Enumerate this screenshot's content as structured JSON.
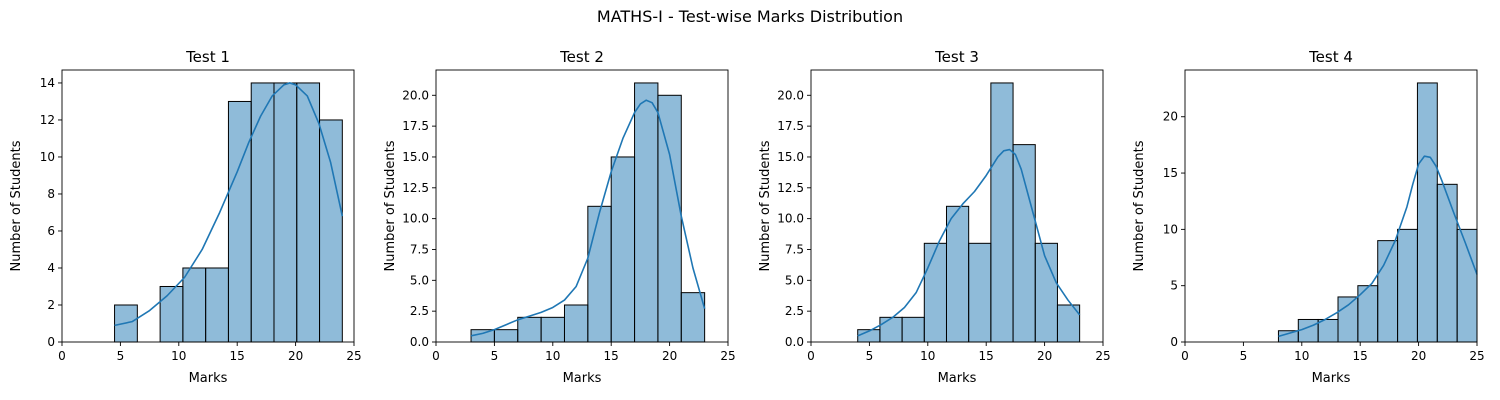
{
  "suptitle": "MATHS-I - Test-wise Marks Distribution",
  "style": {
    "bar_fill": "#1f77b4",
    "bar_fill_opacity": 0.5,
    "bar_edge": "#000000",
    "kde_color": "#1f77b4"
  },
  "chart_data": [
    {
      "type": "bar",
      "title": "Test 1",
      "xlabel": "Marks",
      "ylabel": "Number of Students",
      "xlim": [
        0,
        25
      ],
      "ylim": [
        0,
        14.7
      ],
      "xticks": [
        0,
        5,
        10,
        15,
        20,
        25
      ],
      "yticks": [
        0,
        2,
        4,
        6,
        8,
        10,
        12,
        14
      ],
      "ytick_labels": [
        "0",
        "2",
        "4",
        "6",
        "8",
        "10",
        "12",
        "14"
      ],
      "bins": [
        {
          "x0": 4.5,
          "x1": 6.45,
          "count": 2
        },
        {
          "x0": 6.45,
          "x1": 8.4,
          "count": 0
        },
        {
          "x0": 8.4,
          "x1": 10.35,
          "count": 3
        },
        {
          "x0": 10.35,
          "x1": 12.3,
          "count": 4
        },
        {
          "x0": 12.3,
          "x1": 14.25,
          "count": 4
        },
        {
          "x0": 14.25,
          "x1": 16.2,
          "count": 13
        },
        {
          "x0": 16.2,
          "x1": 18.15,
          "count": 14
        },
        {
          "x0": 18.15,
          "x1": 20.1,
          "count": 14
        },
        {
          "x0": 20.1,
          "x1": 22.05,
          "count": 14
        },
        {
          "x0": 22.05,
          "x1": 24.0,
          "count": 12
        }
      ],
      "kde": {
        "x": [
          4.5,
          6,
          7.5,
          9,
          10.5,
          12,
          13.5,
          15,
          16,
          17,
          18,
          19,
          19.5,
          20,
          21,
          22,
          23,
          24
        ],
        "y": [
          0.9,
          1.1,
          1.7,
          2.5,
          3.5,
          5.0,
          7.0,
          9.2,
          10.8,
          12.2,
          13.3,
          13.9,
          14.0,
          13.9,
          13.3,
          11.8,
          9.7,
          6.8
        ]
      }
    },
    {
      "type": "bar",
      "title": "Test 2",
      "xlabel": "Marks",
      "ylabel": "Number of Students",
      "xlim": [
        0,
        25
      ],
      "ylim": [
        0,
        22.05
      ],
      "xticks": [
        0,
        5,
        10,
        15,
        20,
        25
      ],
      "yticks": [
        0,
        2.5,
        5,
        7.5,
        10,
        12.5,
        15,
        17.5,
        20
      ],
      "ytick_labels": [
        "0.0",
        "2.5",
        "5.0",
        "7.5",
        "10.0",
        "12.5",
        "15.0",
        "17.5",
        "20.0"
      ],
      "bins": [
        {
          "x0": 3.0,
          "x1": 5.0,
          "count": 1
        },
        {
          "x0": 5.0,
          "x1": 7.0,
          "count": 1
        },
        {
          "x0": 7.0,
          "x1": 9.0,
          "count": 2
        },
        {
          "x0": 9.0,
          "x1": 11.0,
          "count": 2
        },
        {
          "x0": 11.0,
          "x1": 13.0,
          "count": 3
        },
        {
          "x0": 13.0,
          "x1": 15.0,
          "count": 11
        },
        {
          "x0": 15.0,
          "x1": 17.0,
          "count": 15
        },
        {
          "x0": 17.0,
          "x1": 19.0,
          "count": 21
        },
        {
          "x0": 19.0,
          "x1": 21.0,
          "count": 20
        },
        {
          "x0": 21.0,
          "x1": 23.0,
          "count": 4
        }
      ],
      "kde": {
        "x": [
          3,
          4,
          5,
          6,
          7,
          8,
          9,
          10,
          11,
          12,
          13,
          14,
          15,
          16,
          17,
          17.5,
          18,
          18.5,
          19,
          20,
          21,
          22,
          23
        ],
        "y": [
          0.5,
          0.7,
          1.0,
          1.4,
          1.8,
          2.1,
          2.4,
          2.8,
          3.4,
          4.5,
          6.8,
          10.5,
          13.8,
          16.5,
          18.6,
          19.3,
          19.6,
          19.4,
          18.6,
          15.2,
          10.2,
          6.0,
          2.7
        ]
      }
    },
    {
      "type": "bar",
      "title": "Test 3",
      "xlabel": "Marks",
      "ylabel": "Number of Students",
      "xlim": [
        0,
        25
      ],
      "ylim": [
        0,
        22.05
      ],
      "xticks": [
        0,
        5,
        10,
        15,
        20,
        25
      ],
      "yticks": [
        0,
        2.5,
        5,
        7.5,
        10,
        12.5,
        15,
        17.5,
        20
      ],
      "ytick_labels": [
        "0.0",
        "2.5",
        "5.0",
        "7.5",
        "10.0",
        "12.5",
        "15.0",
        "17.5",
        "20.0"
      ],
      "bins": [
        {
          "x0": 4.0,
          "x1": 5.9,
          "count": 1
        },
        {
          "x0": 5.9,
          "x1": 7.8,
          "count": 2
        },
        {
          "x0": 7.8,
          "x1": 9.7,
          "count": 2
        },
        {
          "x0": 9.7,
          "x1": 11.6,
          "count": 8
        },
        {
          "x0": 11.6,
          "x1": 13.5,
          "count": 11
        },
        {
          "x0": 13.5,
          "x1": 15.4,
          "count": 8
        },
        {
          "x0": 15.4,
          "x1": 17.3,
          "count": 21
        },
        {
          "x0": 17.3,
          "x1": 19.2,
          "count": 16
        },
        {
          "x0": 19.2,
          "x1": 21.1,
          "count": 8
        },
        {
          "x0": 21.1,
          "x1": 23.0,
          "count": 3
        }
      ],
      "kde": {
        "x": [
          4,
          5,
          6,
          7,
          8,
          9,
          10,
          11,
          12,
          13,
          14,
          15,
          16,
          16.5,
          17,
          17.5,
          18,
          19,
          20,
          21,
          22,
          23
        ],
        "y": [
          0.5,
          0.9,
          1.4,
          2.0,
          2.8,
          4.0,
          6.0,
          8.2,
          10.0,
          11.2,
          12.2,
          13.5,
          15.0,
          15.5,
          15.6,
          15.2,
          14.0,
          10.5,
          7.0,
          4.8,
          3.4,
          2.2
        ]
      }
    },
    {
      "type": "bar",
      "title": "Test 4",
      "xlabel": "Marks",
      "ylabel": "Number of Students",
      "xlim": [
        0,
        25
      ],
      "ylim": [
        0,
        24.15
      ],
      "xticks": [
        0,
        5,
        10,
        15,
        20,
        25
      ],
      "yticks": [
        0,
        5,
        10,
        15,
        20
      ],
      "ytick_labels": [
        "0",
        "5",
        "10",
        "15",
        "20"
      ],
      "bins": [
        {
          "x0": 8.0,
          "x1": 9.7,
          "count": 1
        },
        {
          "x0": 9.7,
          "x1": 11.4,
          "count": 2
        },
        {
          "x0": 11.4,
          "x1": 13.1,
          "count": 2
        },
        {
          "x0": 13.1,
          "x1": 14.8,
          "count": 4
        },
        {
          "x0": 14.8,
          "x1": 16.5,
          "count": 5
        },
        {
          "x0": 16.5,
          "x1": 18.2,
          "count": 9
        },
        {
          "x0": 18.2,
          "x1": 19.9,
          "count": 10
        },
        {
          "x0": 19.9,
          "x1": 21.6,
          "count": 23
        },
        {
          "x0": 21.6,
          "x1": 23.3,
          "count": 14
        },
        {
          "x0": 23.3,
          "x1": 25.0,
          "count": 10
        }
      ],
      "kde": {
        "x": [
          8,
          9,
          10,
          11,
          12,
          13,
          14,
          15,
          16,
          17,
          18,
          19,
          19.5,
          20,
          20.5,
          21,
          21.5,
          22,
          23,
          24,
          25
        ],
        "y": [
          0.5,
          0.8,
          1.1,
          1.5,
          2.0,
          2.6,
          3.3,
          4.2,
          5.2,
          6.8,
          9.0,
          12.0,
          14.0,
          15.8,
          16.5,
          16.4,
          15.6,
          14.3,
          11.5,
          8.8,
          6.0
        ]
      }
    }
  ]
}
